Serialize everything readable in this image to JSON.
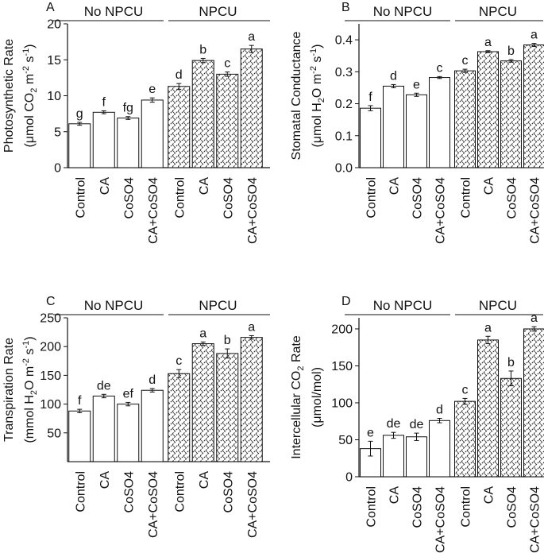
{
  "chart_data": [
    {
      "type": "bar",
      "panel_label": "A",
      "group_labels": [
        "No NPCU",
        "NPCU"
      ],
      "categories": [
        "Control",
        "CA",
        "CoSO4",
        "CA+CoSO4",
        "Control",
        "CA",
        "CoSO4",
        "CA+CoSO4"
      ],
      "ylabel_line1": "Photosynthetic Rate",
      "ylabel_line2": {
        "pre": "(μmol CO",
        "sub": "2",
        "mid": " m",
        "sup1": "-2",
        "mid2": " s",
        "sup2": "-1",
        "post": ")"
      },
      "ylim": [
        0,
        20
      ],
      "yticks": [
        0,
        5,
        10,
        15,
        20
      ],
      "values": [
        6.1,
        7.7,
        6.9,
        9.4,
        11.3,
        14.9,
        13.0,
        16.5
      ],
      "errors": [
        0.2,
        0.2,
        0.2,
        0.3,
        0.4,
        0.3,
        0.3,
        0.5
      ],
      "letters": [
        "g",
        "f",
        "fg",
        "e",
        "d",
        "b",
        "c",
        "a"
      ]
    },
    {
      "type": "bar",
      "panel_label": "B",
      "group_labels": [
        "No NPCU",
        "NPCU"
      ],
      "categories": [
        "Control",
        "CA",
        "CoSO4",
        "CA+CoSO4",
        "Control",
        "CA",
        "CoSO4",
        "CA+CoSO4"
      ],
      "ylabel_line1": "Stomatal Conductance",
      "ylabel_line2": {
        "pre": "(μmol H",
        "sub": "2",
        "mid": "O m",
        "sup1": "-2",
        "mid2": " s",
        "sup2": "-1",
        "post": ")"
      },
      "ylim": [
        0,
        0.45
      ],
      "yticks": [
        0.0,
        0.1,
        0.2,
        0.3,
        0.4
      ],
      "ytick_labels": [
        "0.0",
        "0.1",
        "0.2",
        "0.3",
        "0.4"
      ],
      "values": [
        0.186,
        0.255,
        0.228,
        0.282,
        0.303,
        0.363,
        0.334,
        0.384
      ],
      "errors": [
        0.008,
        0.005,
        0.005,
        0.003,
        0.005,
        0.003,
        0.004,
        0.005
      ],
      "letters": [
        "f",
        "d",
        "e",
        "c",
        "c",
        "a",
        "b",
        "a"
      ]
    },
    {
      "type": "bar",
      "panel_label": "C",
      "group_labels": [
        "No NPCU",
        "NPCU"
      ],
      "categories": [
        "Control",
        "CA",
        "CoSO4",
        "CA+CoSO4",
        "Control",
        "CA",
        "CoSO4",
        "CA+CoSO4"
      ],
      "ylabel_line1": "Transpiration Rate",
      "ylabel_line2": {
        "pre": "(mmol H",
        "sub": "2",
        "mid": "O m",
        "sup1": "-2",
        "mid2": " s",
        "sup2": "-1",
        "post": ")"
      },
      "ylim": [
        0,
        250
      ],
      "yticks": [
        50,
        100,
        150,
        200,
        250
      ],
      "values": [
        88,
        114,
        100,
        124,
        153,
        205,
        188,
        216
      ],
      "errors": [
        3,
        3,
        3,
        3,
        7,
        3,
        8,
        3
      ],
      "letters": [
        "f",
        "de",
        "ef",
        "d",
        "c",
        "a",
        "b",
        "a"
      ]
    },
    {
      "type": "bar",
      "panel_label": "D",
      "group_labels": [
        "No NPCU",
        "NPCU"
      ],
      "categories": [
        "Control",
        "CA",
        "CoSO4",
        "CA+CoSO4",
        "Control",
        "CA",
        "CoSO4",
        "CA+CoSO4"
      ],
      "ylabel_line1": {
        "pre": "Intercellular CO",
        "sub": "2",
        "post": " Rate"
      },
      "ylabel_line2": {
        "pre": "(μmol/mol)",
        "sub": "",
        "mid": "",
        "sup1": "",
        "mid2": "",
        "sup2": "",
        "post": ""
      },
      "ylim": [
        0,
        215
      ],
      "yticks": [
        0,
        50,
        100,
        150,
        200
      ],
      "values": [
        38,
        56,
        54,
        76,
        102,
        185,
        133,
        200
      ],
      "errors": [
        10,
        4,
        5,
        3,
        4,
        5,
        10,
        3
      ],
      "letters": [
        "e",
        "de",
        "de",
        "d",
        "c",
        "a",
        "b",
        "a"
      ]
    }
  ],
  "colors": {
    "ink": "#111111",
    "fill_plain": "#ffffff",
    "hatch_line": "#222222"
  }
}
